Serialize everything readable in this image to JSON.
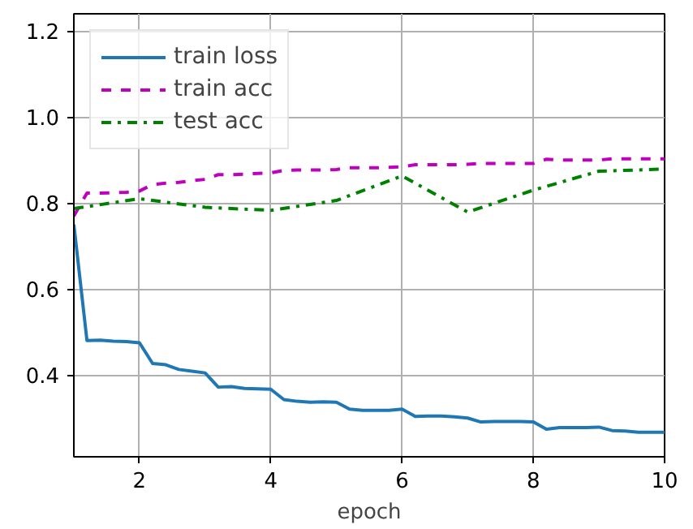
{
  "chart_data": {
    "type": "line",
    "xlabel": "epoch",
    "xlim": [
      1,
      10
    ],
    "ylim": [
      0.21,
      1.24
    ],
    "xticks": [
      2,
      4,
      6,
      8,
      10
    ],
    "yticks": [
      0.4,
      0.6,
      0.8,
      {
        "value": 1.0,
        "label": "1.0"
      },
      1.2
    ],
    "grid": true,
    "legend": "top left",
    "marker": "none",
    "series": [
      {
        "name": "train loss",
        "color": "#1f77b4",
        "line_style": "solid",
        "x": [
          1.0,
          1.2,
          1.4,
          1.6,
          1.8,
          2.0,
          2.2,
          2.4,
          2.6,
          2.8,
          3.0,
          3.2,
          3.4,
          3.6,
          3.8,
          4.0,
          4.2,
          4.4,
          4.6,
          4.8,
          5.0,
          5.2,
          5.4,
          5.6,
          5.8,
          6.0,
          6.2,
          6.4,
          6.6,
          6.8,
          7.0,
          7.2,
          7.4,
          7.6,
          7.8,
          8.0,
          8.2,
          8.4,
          8.6,
          8.8,
          9.0,
          9.2,
          9.4,
          9.6,
          9.8,
          10.0
        ],
        "values": [
          0.75,
          0.48,
          0.481,
          0.479,
          0.478,
          0.475,
          0.427,
          0.424,
          0.413,
          0.409,
          0.405,
          0.372,
          0.373,
          0.369,
          0.368,
          0.367,
          0.343,
          0.339,
          0.337,
          0.338,
          0.337,
          0.321,
          0.318,
          0.318,
          0.318,
          0.321,
          0.304,
          0.305,
          0.305,
          0.303,
          0.3,
          0.291,
          0.292,
          0.292,
          0.292,
          0.291,
          0.274,
          0.278,
          0.278,
          0.278,
          0.279,
          0.271,
          0.27,
          0.267,
          0.267,
          0.267
        ]
      },
      {
        "name": "train acc",
        "color": "#bf00bf",
        "line_style": "dashed",
        "x": [
          1.0,
          1.2,
          1.4,
          1.6,
          1.8,
          2.0,
          2.2,
          2.4,
          2.6,
          2.8,
          3.0,
          3.2,
          3.4,
          3.6,
          3.8,
          4.0,
          4.2,
          4.4,
          4.6,
          4.8,
          5.0,
          5.2,
          5.4,
          5.6,
          5.8,
          6.0,
          6.2,
          6.4,
          6.6,
          6.8,
          7.0,
          7.2,
          7.4,
          7.6,
          7.8,
          8.0,
          8.2,
          8.4,
          8.6,
          8.8,
          9.0,
          9.2,
          9.4,
          9.6,
          9.8,
          10.0
        ],
        "values": [
          0.77,
          0.823,
          0.823,
          0.824,
          0.825,
          0.828,
          0.843,
          0.846,
          0.848,
          0.852,
          0.855,
          0.866,
          0.866,
          0.867,
          0.869,
          0.87,
          0.876,
          0.877,
          0.877,
          0.877,
          0.878,
          0.882,
          0.882,
          0.882,
          0.883,
          0.884,
          0.889,
          0.889,
          0.889,
          0.889,
          0.89,
          0.892,
          0.892,
          0.892,
          0.892,
          0.892,
          0.902,
          0.9,
          0.9,
          0.9,
          0.9,
          0.903,
          0.903,
          0.903,
          0.903,
          0.903
        ]
      },
      {
        "name": "test acc",
        "color": "#008000",
        "line_style": "dashdot",
        "x": [
          1,
          2,
          3,
          4,
          5,
          6,
          7,
          8,
          9,
          10
        ],
        "values": [
          0.787,
          0.81,
          0.79,
          0.783,
          0.806,
          0.863,
          0.779,
          0.83,
          0.874,
          0.879
        ]
      }
    ]
  }
}
